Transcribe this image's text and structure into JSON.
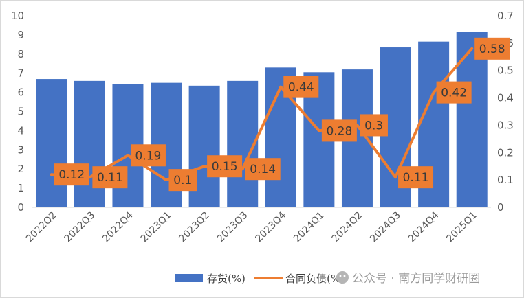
{
  "chart_data": {
    "type": "bar+line",
    "categories": [
      "2022Q2",
      "2022Q3",
      "2022Q4",
      "2023Q1",
      "2023Q2",
      "2023Q3",
      "2023Q4",
      "2024Q1",
      "2024Q2",
      "2024Q3",
      "2024Q4",
      "2025Q1"
    ],
    "series": [
      {
        "name": "存货(%)",
        "type": "bar",
        "axis": "left",
        "color": "#4472C4",
        "values": [
          6.7,
          6.6,
          6.45,
          6.5,
          6.35,
          6.6,
          7.3,
          7.05,
          7.2,
          8.35,
          8.65,
          9.15
        ]
      },
      {
        "name": "合同负债(%)",
        "type": "line",
        "axis": "right",
        "color": "#ED7D31",
        "values": [
          0.12,
          0.11,
          0.19,
          0.1,
          0.15,
          0.14,
          0.44,
          0.28,
          0.3,
          0.11,
          0.42,
          0.58
        ],
        "labels": [
          "0.12",
          "0.11",
          "0.19",
          "0.1",
          "0.15",
          "0.14",
          "0.44",
          "0.28",
          "0.3",
          "0.11",
          "0.42",
          "0.58"
        ]
      }
    ],
    "y_left": {
      "range": [
        0,
        10
      ],
      "ticks": [
        "0",
        "1",
        "2",
        "3",
        "4",
        "5",
        "6",
        "7",
        "8",
        "9",
        "10"
      ]
    },
    "y_right": {
      "range": [
        0,
        0.7
      ],
      "ticks": [
        "0",
        "0.1",
        "0.2",
        "0.3",
        "0.4",
        "0.5",
        "0.6",
        "0.7"
      ]
    },
    "grid": false,
    "legend_position": "bottom"
  },
  "watermark": "公众号 · 南方同学财研圈"
}
